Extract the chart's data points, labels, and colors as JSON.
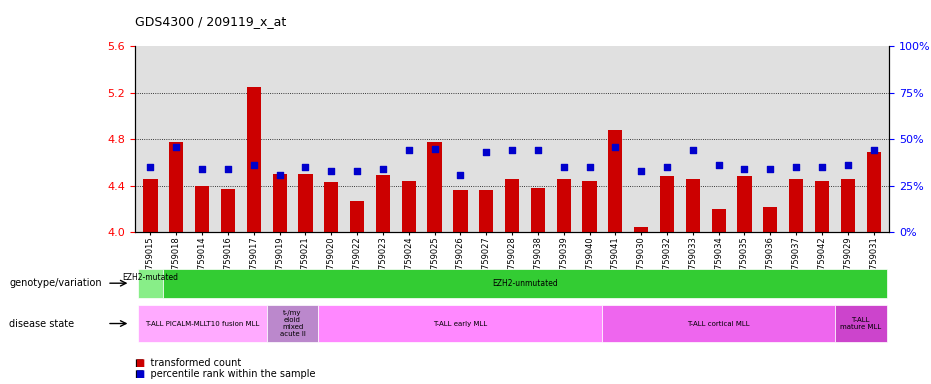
{
  "title": "GDS4300 / 209119_x_at",
  "samples": [
    "GSM759015",
    "GSM759018",
    "GSM759014",
    "GSM759016",
    "GSM759017",
    "GSM759019",
    "GSM759021",
    "GSM759020",
    "GSM759022",
    "GSM759023",
    "GSM759024",
    "GSM759025",
    "GSM759026",
    "GSM759027",
    "GSM759028",
    "GSM759038",
    "GSM759039",
    "GSM759040",
    "GSM759041",
    "GSM759030",
    "GSM759032",
    "GSM759033",
    "GSM759034",
    "GSM759035",
    "GSM759036",
    "GSM759037",
    "GSM759042",
    "GSM759029",
    "GSM759031"
  ],
  "red_values": [
    4.46,
    4.78,
    4.4,
    4.37,
    5.25,
    4.5,
    4.5,
    4.43,
    4.27,
    4.49,
    4.44,
    4.78,
    4.36,
    4.36,
    4.46,
    4.38,
    4.46,
    4.44,
    4.88,
    4.05,
    4.48,
    4.46,
    4.2,
    4.48,
    4.22,
    4.46,
    4.44,
    4.46,
    4.69
  ],
  "blue_values_pct": [
    35,
    46,
    34,
    34,
    36,
    31,
    35,
    33,
    33,
    34,
    44,
    45,
    31,
    43,
    44,
    44,
    35,
    35,
    46,
    33,
    35,
    44,
    36,
    34,
    34,
    35,
    35,
    36,
    44
  ],
  "ylim_left": [
    4.0,
    5.6
  ],
  "yticks_left": [
    4.0,
    4.4,
    4.8,
    5.2,
    5.6
  ],
  "yticks_right": [
    0,
    25,
    50,
    75,
    100
  ],
  "ylim_right": [
    0,
    100
  ],
  "bar_color": "#cc0000",
  "dot_color": "#0000cc",
  "bg_color": "#e0e0e0",
  "geno_segments": [
    {
      "text": "EZH2-mutated\n",
      "color": "#88ee88",
      "start": 0,
      "end": 1
    },
    {
      "text": "EZH2-unmutated",
      "color": "#33cc33",
      "start": 1,
      "end": 29
    }
  ],
  "disease_segments": [
    {
      "text": "T-ALL PICALM-MLLT10 fusion MLL",
      "color": "#ffaaff",
      "start": 0,
      "end": 5
    },
    {
      "text": "t-/my\neloid\nmixed\nacute ll",
      "color": "#bb88cc",
      "start": 5,
      "end": 7
    },
    {
      "text": "T-ALL early MLL",
      "color": "#ff88ff",
      "start": 7,
      "end": 18
    },
    {
      "text": "T-ALL cortical MLL",
      "color": "#ee66ee",
      "start": 18,
      "end": 27
    },
    {
      "text": "T-ALL\nmature MLL",
      "color": "#cc44cc",
      "start": 27,
      "end": 29
    }
  ]
}
